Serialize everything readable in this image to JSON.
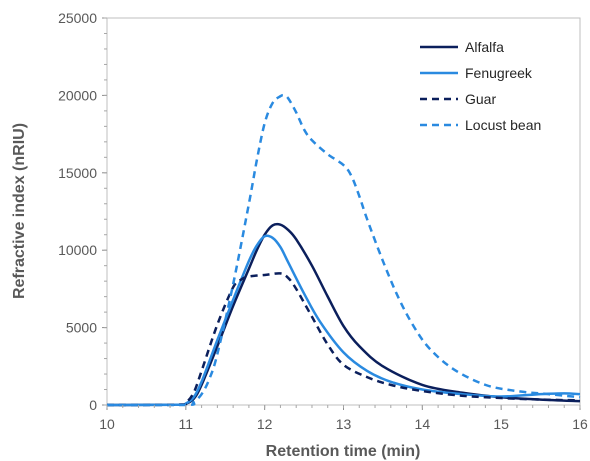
{
  "chart_data": {
    "type": "line",
    "xlabel": "Retention time (min)",
    "ylabel": "Refractive index (nRIU)",
    "xlim": [
      10,
      16
    ],
    "ylim": [
      0,
      25000
    ],
    "xticks": [
      "10",
      "11",
      "12",
      "13",
      "14",
      "15",
      "16"
    ],
    "yticks": [
      "0",
      "5000",
      "10000",
      "15000",
      "20000",
      "25000"
    ],
    "grid": false,
    "legend": "top-right",
    "series": [
      {
        "name": "Alfalfa",
        "color": "#0b1f5c",
        "dash": "solid",
        "x": [
          10.0,
          10.9,
          11.0,
          11.1,
          11.2,
          11.4,
          11.6,
          11.8,
          11.9,
          12.0,
          12.1,
          12.2,
          12.3,
          12.4,
          12.6,
          12.8,
          13.0,
          13.2,
          13.5,
          14.0,
          14.5,
          15.0,
          15.5,
          16.0
        ],
        "y": [
          0,
          20,
          80,
          400,
          1300,
          3800,
          6400,
          8800,
          10000,
          11000,
          11600,
          11650,
          11300,
          10700,
          9000,
          7000,
          5100,
          3800,
          2500,
          1300,
          800,
          500,
          350,
          250
        ]
      },
      {
        "name": "Fenugreek",
        "color": "#2a8ae0",
        "dash": "solid",
        "x": [
          10.0,
          10.9,
          11.0,
          11.1,
          11.2,
          11.4,
          11.6,
          11.8,
          11.9,
          12.0,
          12.1,
          12.2,
          12.3,
          12.5,
          12.7,
          13.0,
          13.3,
          13.6,
          14.0,
          14.5,
          15.0,
          15.5,
          15.8,
          16.0
        ],
        "y": [
          0,
          20,
          100,
          500,
          1500,
          4200,
          6800,
          9300,
          10300,
          10900,
          10800,
          10200,
          9200,
          7200,
          5400,
          3400,
          2200,
          1500,
          1000,
          700,
          550,
          700,
          750,
          700
        ]
      },
      {
        "name": "Guar",
        "color": "#0b1f5c",
        "dash": "dashed",
        "x": [
          10.0,
          10.9,
          11.0,
          11.1,
          11.2,
          11.4,
          11.6,
          11.7,
          11.8,
          12.0,
          12.2,
          12.3,
          12.4,
          12.6,
          12.8,
          13.0,
          13.3,
          13.6,
          14.0,
          14.5,
          15.0,
          15.5,
          16.0
        ],
        "y": [
          0,
          20,
          150,
          800,
          2200,
          5200,
          7600,
          8100,
          8300,
          8400,
          8500,
          8200,
          7500,
          5700,
          3900,
          2600,
          1800,
          1300,
          900,
          600,
          450,
          350,
          300
        ]
      },
      {
        "name": "Locust bean",
        "color": "#2a8ae0",
        "dash": "dashed",
        "x": [
          10.0,
          11.0,
          11.1,
          11.2,
          11.3,
          11.4,
          11.6,
          11.8,
          11.9,
          12.0,
          12.1,
          12.2,
          12.25,
          12.3,
          12.4,
          12.5,
          12.6,
          12.8,
          13.0,
          13.1,
          13.2,
          13.3,
          13.5,
          13.7,
          13.9,
          14.1,
          14.4,
          14.8,
          15.2,
          15.6,
          16.0
        ],
        "y": [
          0,
          0,
          200,
          700,
          1700,
          3300,
          7800,
          13000,
          15800,
          18200,
          19500,
          19950,
          20000,
          19800,
          18900,
          17800,
          17100,
          16200,
          15500,
          14800,
          13500,
          12000,
          9300,
          6900,
          5000,
          3600,
          2300,
          1300,
          900,
          700,
          500
        ]
      }
    ]
  }
}
